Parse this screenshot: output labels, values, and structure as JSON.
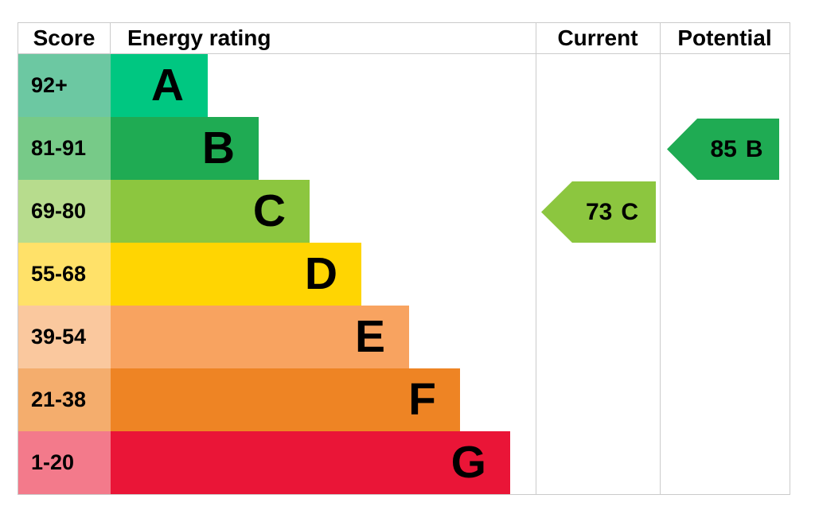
{
  "chart_data": {
    "type": "bar",
    "subtype": "epc-energy-rating-chart",
    "orientation": "horizontal",
    "grid_color": "#cbcbcb",
    "columns": {
      "score_label": "Score",
      "rating_label": "Energy rating",
      "current_label": "Current",
      "potential_label": "Potential"
    },
    "bands": [
      {
        "letter": "A",
        "score_range": "92+",
        "bar_color": "#00c781",
        "score_bg": "#6cc8a2",
        "bar_length_rank": 1
      },
      {
        "letter": "B",
        "score_range": "81-91",
        "bar_color": "#1fab53",
        "score_bg": "#77ca88",
        "bar_length_rank": 2
      },
      {
        "letter": "C",
        "score_range": "69-80",
        "bar_color": "#8cc63f",
        "score_bg": "#b7dc8d",
        "bar_length_rank": 3
      },
      {
        "letter": "D",
        "score_range": "55-68",
        "bar_color": "#ffd502",
        "score_bg": "#ffe169",
        "bar_length_rank": 4
      },
      {
        "letter": "E",
        "score_range": "39-54",
        "bar_color": "#f8a360",
        "score_bg": "#fac89e",
        "bar_length_rank": 5
      },
      {
        "letter": "F",
        "score_range": "21-38",
        "bar_color": "#ee8424",
        "score_bg": "#f4ad6d",
        "bar_length_rank": 6
      },
      {
        "letter": "G",
        "score_range": "1-20",
        "bar_color": "#ea1537",
        "score_bg": "#f37a8b",
        "bar_length_rank": 7
      }
    ],
    "markers": {
      "current": {
        "value": 73,
        "band": "C",
        "color": "#8cc63f"
      },
      "potential": {
        "value": 85,
        "band": "B",
        "color": "#1fab53"
      }
    }
  }
}
